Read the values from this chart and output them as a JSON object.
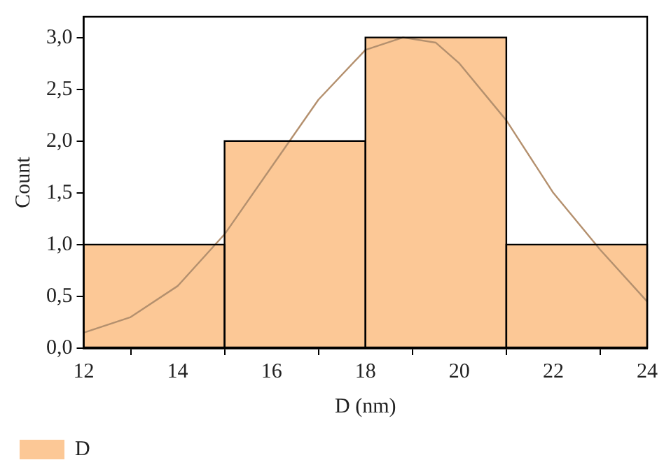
{
  "chart_data": {
    "type": "histogram",
    "xlabel": "D (nm)",
    "ylabel": "Count",
    "series": [
      {
        "name": "D",
        "color": "#fcc896",
        "bins": [
          12,
          15,
          18,
          21,
          24
        ],
        "values": [
          1,
          2,
          3,
          1
        ]
      },
      {
        "type": "line",
        "color": "#b4906e",
        "x": [
          12,
          13,
          14,
          15,
          16,
          17,
          18,
          18.8,
          19.5,
          20,
          21,
          22,
          23,
          24
        ],
        "values": [
          0.15,
          0.3,
          0.6,
          1.1,
          1.75,
          2.4,
          2.88,
          3.0,
          2.95,
          2.75,
          2.2,
          1.5,
          0.95,
          0.45
        ]
      }
    ],
    "xlim": [
      12,
      24
    ],
    "xticks": [
      12,
      14,
      16,
      18,
      20,
      22,
      24
    ],
    "ylim": [
      0,
      3.2
    ],
    "yticks": [
      {
        "value": 0,
        "label": "0,0"
      },
      {
        "value": 0.5,
        "label": "0,5"
      },
      {
        "value": 1,
        "label": "1,0"
      },
      {
        "value": 1.5,
        "label": "1,5"
      },
      {
        "value": 2,
        "label": "2,0"
      },
      {
        "value": 2.5,
        "label": "2,5"
      },
      {
        "value": 3,
        "label": "3,0"
      }
    ],
    "grid": false,
    "legend": "bottom left",
    "marker": "none",
    "line_style": "solid"
  }
}
